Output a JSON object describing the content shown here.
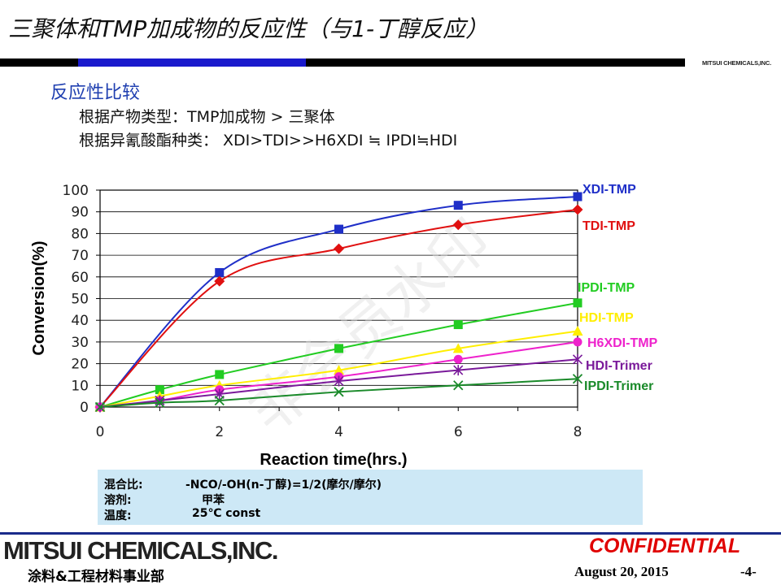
{
  "header": {
    "title": "三聚体和TMP加成物的反应性（与1-丁醇反应）",
    "brand_small": "MITSUI CHEMICALS,INC."
  },
  "section": {
    "subtitle": "反应性比较",
    "line1": "根据产物类型：TMP加成物 > 三聚体",
    "line2": "根据异氰酸酯种类：  XDI>TDI>>H6XDI ≒ IPDI≒HDI"
  },
  "chart_data": {
    "type": "line",
    "xlabel": "Reaction time(hrs.)",
    "ylabel": "Conversion(%)",
    "xlim": [
      0,
      8
    ],
    "ylim": [
      0,
      100
    ],
    "x_ticks": [
      0,
      2,
      4,
      6,
      8
    ],
    "y_ticks": [
      0,
      10,
      20,
      30,
      40,
      50,
      60,
      70,
      80,
      90,
      100
    ],
    "grid": "horizontal",
    "watermark": "非会员水印",
    "series": [
      {
        "name": "XDI-TMP",
        "color": "#1f2fc8",
        "marker": "square",
        "x": [
          0,
          2,
          4,
          6,
          8
        ],
        "values": [
          0,
          62,
          82,
          93,
          97
        ]
      },
      {
        "name": "TDI-TMP",
        "color": "#e01010",
        "marker": "diamond",
        "x": [
          0,
          2,
          4,
          6,
          8
        ],
        "values": [
          0,
          58,
          73,
          84,
          91
        ]
      },
      {
        "name": "IPDI-TMP",
        "color": "#22cc22",
        "marker": "square",
        "x": [
          0,
          1,
          2,
          4,
          6,
          8
        ],
        "values": [
          0,
          8,
          15,
          27,
          38,
          48
        ]
      },
      {
        "name": "HDI-TMP",
        "color": "#ffee00",
        "marker": "triangle",
        "x": [
          0,
          1,
          2,
          4,
          6,
          8
        ],
        "values": [
          0,
          5,
          10,
          17,
          27,
          35
        ]
      },
      {
        "name": "H6XDI-TMP",
        "color": "#ee22cc",
        "marker": "circle",
        "x": [
          0,
          1,
          2,
          4,
          6,
          8
        ],
        "values": [
          0,
          3,
          8,
          14,
          22,
          30
        ]
      },
      {
        "name": "HDI-Trimer",
        "color": "#7a1a9a",
        "marker": "star",
        "x": [
          0,
          1,
          2,
          4,
          6,
          8
        ],
        "values": [
          0,
          3,
          6,
          12,
          17,
          22
        ]
      },
      {
        "name": "IPDI-Trimer",
        "color": "#1a8a2a",
        "marker": "x",
        "x": [
          0,
          1,
          2,
          4,
          6,
          8
        ],
        "values": [
          0,
          2,
          3,
          7,
          10,
          13
        ]
      }
    ]
  },
  "conditions": {
    "ratio_label": "混合比:",
    "ratio_value": "-NCO/-OH(n-丁醇)=1/2(摩尔/摩尔)",
    "solvent_label": "溶剂:",
    "solvent_value": "甲苯",
    "temp_label": "温度:",
    "temp_value": "25℃ const"
  },
  "footer": {
    "logo": "MITSUI CHEMICALS,INC.",
    "department": "涂料&工程材料事业部",
    "confidential": "CONFIDENTIAL",
    "date": "August 20, 2015",
    "page": "-4-"
  },
  "colors": {
    "subtitle": "#1f3fb0",
    "topbar_blue": "#1a1acc",
    "note_bg": "#cde8f6",
    "confidential": "#e00000",
    "footer_rule": "#1a2b8a"
  }
}
